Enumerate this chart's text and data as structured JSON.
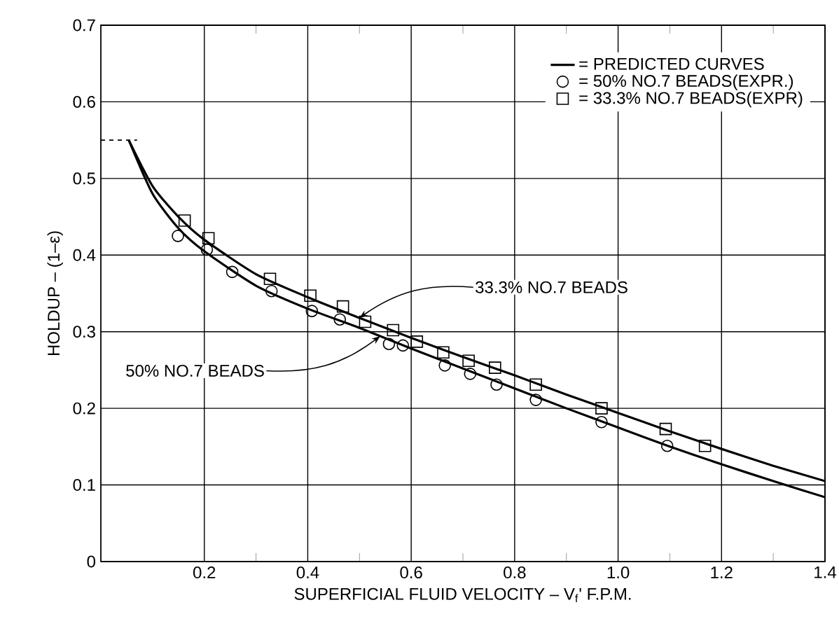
{
  "chart_data": {
    "type": "line",
    "xlabel": "SUPERFICIAL FLUID VELOCITY – V$_{f}$' F.P.M.",
    "ylabel": "HOLDUP – (1–ε)",
    "xlim": [
      0,
      1.4
    ],
    "ylim": [
      0,
      0.7
    ],
    "xticks": [
      0.2,
      0.4,
      0.6,
      0.8,
      {
        "value": 1.0,
        "label": "1.0"
      },
      1.2,
      1.4
    ],
    "yticks": [
      {
        "value": 0,
        "label": "0"
      },
      0.1,
      0.2,
      0.3,
      0.4,
      0.5,
      0.6,
      0.7
    ],
    "grid": true,
    "legend": "top right",
    "series": [
      {
        "name": "= PREDICTED CURVES",
        "color": "#000000",
        "marker": "none",
        "x": [
          0.054,
          0.1,
          0.15,
          0.2,
          0.3,
          0.4,
          0.5,
          0.6,
          0.7,
          0.8,
          0.9,
          1.0,
          1.1,
          1.2,
          1.3,
          1.4
        ],
        "values": [
          0.55,
          0.49,
          0.45,
          0.42,
          0.375,
          0.345,
          0.318,
          0.292,
          0.267,
          0.243,
          0.218,
          0.194,
          0.17,
          0.147,
          0.125,
          0.105
        ]
      },
      {
        "color": "#000000",
        "marker": "none",
        "x": [
          0.054,
          0.1,
          0.15,
          0.2,
          0.3,
          0.4,
          0.5,
          0.6,
          0.7,
          0.8,
          0.9,
          1.0,
          1.1,
          1.2,
          1.3,
          1.4
        ],
        "values": [
          0.55,
          0.48,
          0.435,
          0.405,
          0.36,
          0.33,
          0.305,
          0.278,
          0.252,
          0.226,
          0.2,
          0.175,
          0.15,
          0.127,
          0.105,
          0.084
        ]
      },
      {
        "name": "= 50% NO.7 BEADS(EXPR.)",
        "type": "scatter",
        "color": "#000000",
        "marker": "circle",
        "x": [
          0.149,
          0.205,
          0.254,
          0.33,
          0.408,
          0.462,
          0.557,
          0.584,
          0.665,
          0.714,
          0.765,
          0.841,
          0.968,
          1.095
        ],
        "values": [
          0.425,
          0.407,
          0.378,
          0.353,
          0.327,
          0.316,
          0.284,
          0.282,
          0.256,
          0.245,
          0.231,
          0.211,
          0.182,
          0.151
        ]
      },
      {
        "name": "= 33.3% NO.7 BEADS(EXPR)",
        "type": "scatter",
        "color": "#000000",
        "marker": "square",
        "x": [
          0.162,
          0.208,
          0.327,
          0.405,
          0.468,
          0.511,
          0.565,
          0.611,
          0.662,
          0.711,
          0.762,
          0.841,
          0.968,
          1.092,
          1.168
        ],
        "values": [
          0.445,
          0.422,
          0.369,
          0.347,
          0.333,
          0.313,
          0.302,
          0.287,
          0.273,
          0.262,
          0.253,
          0.231,
          0.2,
          0.173,
          0.151
        ]
      },
      {
        "type": "line",
        "color": "#000000",
        "marker": "none",
        "line_style": "dashed",
        "x": [
          0,
          0.07
        ],
        "values": [
          0.55,
          0.55
        ]
      }
    ],
    "annotations": [
      {
        "text": "33.3% NO.7 BEADS",
        "x": 0.5,
        "y": 0.318
      },
      {
        "text": "50% NO.7 BEADS",
        "x": 0.54,
        "y": 0.294
      }
    ]
  }
}
